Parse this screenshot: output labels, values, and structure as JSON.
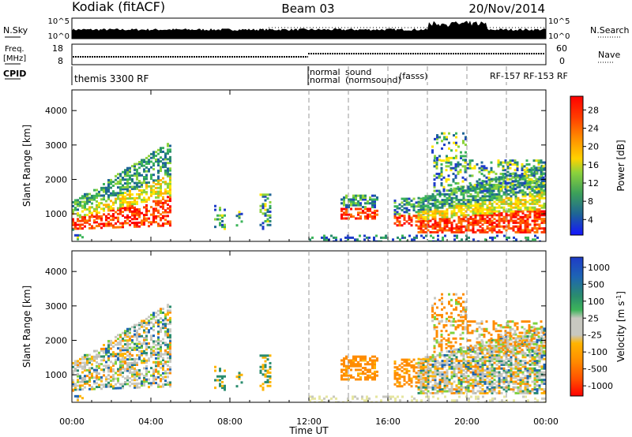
{
  "header": {
    "title_left": "Kodiak (fitACF)",
    "title_center": "Beam 03",
    "title_right": "20/Nov/2014"
  },
  "top_panels": {
    "nsky_label": "N.Sky",
    "nsearch_label": "N.Search",
    "nsky_ticks": [
      "10^5",
      "10^0"
    ],
    "nsky_ticks_right": [
      "10^5",
      "10^0"
    ],
    "freq_label_1": "Freq.",
    "freq_label_2": "[MHz]",
    "freq_ticks": [
      "18",
      "8"
    ],
    "nave_label": "Nave",
    "nave_ticks": [
      "60",
      "0"
    ],
    "cpid_label": "CPID",
    "cpid_segments": [
      {
        "text": "themis 3300 RF"
      },
      {
        "text": "normal"
      },
      {
        "text": "normal"
      },
      {
        "text": "sound"
      },
      {
        "text": "(normsound)"
      },
      {
        "text": "(fasss)"
      },
      {
        "text": "RF-157 RF-153 RF"
      }
    ]
  },
  "chart_data": [
    {
      "type": "heatmap",
      "name": "power",
      "ylabel": "Slant Range [km]",
      "xlabel": "",
      "ylim": [
        200,
        4600
      ],
      "y_ticks": [
        1000,
        2000,
        3000,
        4000
      ],
      "colorbar": {
        "label": "Power [dB]",
        "ticks": [
          "28",
          "24",
          "20",
          "16",
          "12",
          "8",
          "4"
        ],
        "colors": [
          "#ff0000",
          "#ff3c00",
          "#ff7800",
          "#ffb400",
          "#ffe600",
          "#8cd23c",
          "#3cb45a",
          "#2a8c6e",
          "#1e6496",
          "#1e3cc8",
          "#1414ff"
        ]
      }
    },
    {
      "type": "heatmap",
      "name": "velocity",
      "ylabel": "Slant Range [km]",
      "xlabel": "Time UT",
      "ylim": [
        200,
        4600
      ],
      "y_ticks": [
        1000,
        2000,
        3000,
        4000
      ],
      "x_ticks": [
        "00:00",
        "04:00",
        "08:00",
        "12:00",
        "16:00",
        "20:00",
        "00:00"
      ],
      "colorbar": {
        "label": "Velocity [m s^-1]",
        "ticks": [
          "1000",
          "500",
          "100",
          "25",
          "-25",
          "-100",
          "-500",
          "-1000"
        ],
        "colors": [
          "#1e3cc8",
          "#1e64b4",
          "#2a8c6e",
          "#3cb45a",
          "#7fd23c",
          "#c8c8c0",
          "#ffb400",
          "#ff8c00",
          "#ff5a00",
          "#ff0000"
        ]
      }
    }
  ]
}
